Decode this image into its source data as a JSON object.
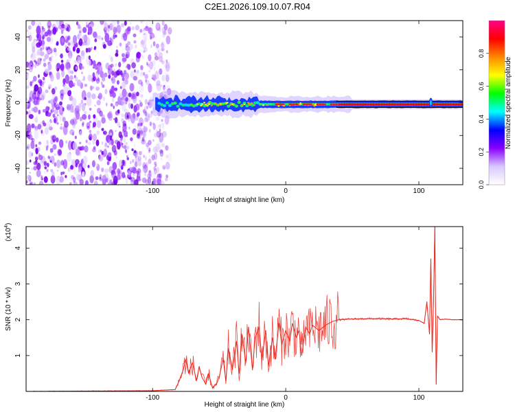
{
  "title": "C2E1.2026.109.10.07.R04",
  "chart_data": [
    {
      "type": "heatmap",
      "xlabel": "Height of straight line (km)",
      "ylabel": "Frequency (Hz)",
      "xlim": [
        -195,
        133
      ],
      "ylim": [
        -50,
        50
      ],
      "xticks": [
        -100,
        0,
        100
      ],
      "yticks": [
        -40,
        -20,
        0,
        20,
        40
      ],
      "noise_region": [
        -195,
        -95
      ],
      "signal_trace_hz": -1,
      "colorbar": {
        "label": "Normalized spectral amplitude",
        "range": [
          0,
          1
        ],
        "ticks": [
          "0.0",
          "0.2",
          "0.4",
          "0.6",
          "0.8"
        ],
        "colors": [
          "#ffffff",
          "#d9c8ff",
          "#8800ff",
          "#0000ff",
          "#00ffff",
          "#00ff00",
          "#ffff00",
          "#ff8800",
          "#ff0000",
          "#ff0088"
        ]
      }
    },
    {
      "type": "line",
      "xlabel": "Height of straight line (km)",
      "ylabel": "SNR (10 * v/v)",
      "scale_label": "(x10",
      "scale_exp": "4",
      "xlim": [
        -195,
        133
      ],
      "ylim": [
        0,
        4.6
      ],
      "xticks": [
        -100,
        0,
        100
      ],
      "yticks": [
        1,
        2,
        3,
        4
      ],
      "color": "#e8281e",
      "x": [
        -195,
        -100,
        -83,
        -80,
        -77,
        -75,
        -73,
        -70,
        -67,
        -65,
        -63,
        -60,
        -58,
        -55,
        -52,
        -50,
        -47,
        -45,
        -43,
        -40,
        -37,
        -35,
        -33,
        -30,
        -28,
        -25,
        -23,
        -20,
        -18,
        -15,
        -13,
        -10,
        -8,
        -5,
        -3,
        0,
        3,
        5,
        8,
        10,
        12,
        15,
        18,
        20,
        25,
        30,
        35,
        40,
        50,
        60,
        70,
        80,
        90,
        100,
        104,
        106,
        108,
        109,
        110,
        111,
        112,
        113,
        114,
        116,
        120,
        125,
        133
      ],
      "y": [
        0.0,
        0.02,
        0.05,
        0.3,
        0.6,
        0.9,
        0.5,
        0.8,
        0.3,
        0.7,
        0.4,
        0.2,
        0.5,
        0.1,
        0.2,
        0.4,
        0.9,
        0.3,
        1.2,
        0.6,
        1.4,
        0.5,
        1.6,
        0.8,
        1.8,
        0.6,
        1.5,
        1.8,
        0.9,
        1.7,
        0.7,
        1.5,
        0.9,
        1.9,
        1.3,
        1.7,
        1.4,
        1.9,
        1.5,
        1.7,
        1.0,
        1.8,
        1.6,
        1.85,
        1.7,
        1.85,
        1.95,
        2.0,
        2.02,
        2.03,
        2.03,
        2.02,
        2.03,
        1.98,
        1.9,
        2.5,
        1.6,
        3.7,
        1.1,
        2.5,
        4.6,
        0.2,
        2.1,
        2.0,
        2.02,
        2.0,
        2.0
      ]
    }
  ]
}
